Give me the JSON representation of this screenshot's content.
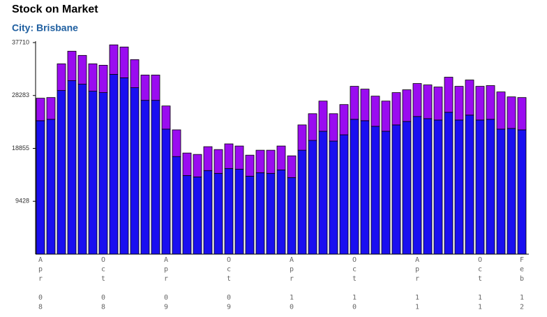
{
  "chart_data": {
    "type": "stacked_bar",
    "title": "Stock on Market",
    "subtitle": "City: Brisbane",
    "categories": [
      "Apr 08",
      null,
      null,
      null,
      null,
      null,
      "Oct 08",
      null,
      null,
      null,
      null,
      null,
      "Apr 09",
      null,
      null,
      null,
      null,
      null,
      "Oct 09",
      null,
      null,
      null,
      null,
      null,
      "Apr 10",
      null,
      null,
      null,
      null,
      null,
      "Oct 10",
      null,
      null,
      null,
      null,
      null,
      "Apr 11",
      null,
      null,
      null,
      null,
      null,
      "Oct 11",
      null,
      null,
      null,
      "Feb 12"
    ],
    "series": [
      {
        "color": "#1a0ff0",
        "values": [
          23790,
          24040,
          29170,
          30920,
          30300,
          29050,
          28800,
          32050,
          31430,
          29670,
          27420,
          27420,
          22290,
          17400,
          14020,
          13770,
          14900,
          14400,
          15270,
          15150,
          13900,
          14520,
          14400,
          15020,
          13650,
          18530,
          20280,
          21910,
          20160,
          21280,
          24040,
          23790,
          22790,
          21910,
          23040,
          23660,
          24540,
          24160,
          23910,
          25290,
          23910,
          24790,
          23910,
          24040,
          22290,
          22410,
          22160
        ]
      },
      {
        "color": "#9a0cf0",
        "values": [
          4010,
          3880,
          4760,
          5260,
          5130,
          4880,
          4880,
          5260,
          5500,
          5010,
          4510,
          4510,
          4130,
          4760,
          4010,
          4010,
          4260,
          4250,
          4390,
          4130,
          3750,
          4010,
          4130,
          4260,
          3880,
          4510,
          4760,
          5380,
          4880,
          5390,
          5880,
          5630,
          5380,
          5380,
          5760,
          5640,
          5880,
          6010,
          5890,
          6260,
          6010,
          6260,
          6010,
          6010,
          6630,
          5630,
          5760
        ]
      }
    ],
    "ylim": [
      0,
      37710
    ],
    "yticks": [
      9428,
      18855,
      28283,
      37710
    ],
    "grid": false
  }
}
